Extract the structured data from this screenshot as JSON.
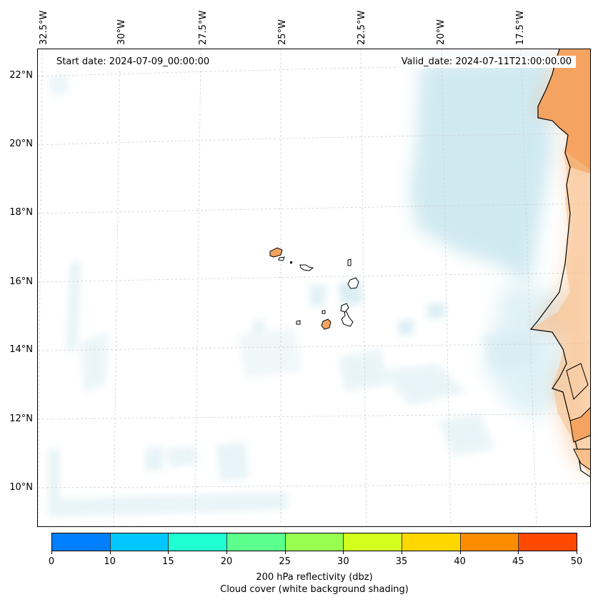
{
  "map": {
    "start_date": "Start date: 2024-07-09_00:00:00",
    "valid_date": "Valid_date: 2024-07-11T21:00:00.00",
    "longitude_labels": [
      "32.5°W",
      "30°W",
      "27.5°W",
      "25°W",
      "22.5°W",
      "20°W",
      "17.5°W"
    ],
    "latitude_labels": [
      "22°N",
      "20°N",
      "18°N",
      "16°N",
      "14°N",
      "12°N",
      "10°N"
    ],
    "colors": {
      "cloud_cover": "#a9d8e6",
      "land_reflectivity": "#f4a460",
      "coastline": "#000000",
      "gridline": "#cfcfcf"
    }
  },
  "colorbar": {
    "ticks": [
      "0",
      "10",
      "15",
      "20",
      "25",
      "30",
      "35",
      "40",
      "45",
      "50"
    ],
    "colors": [
      "#0080ff",
      "#00c8ff",
      "#1effd2",
      "#5aff8c",
      "#96ff50",
      "#d2ff1e",
      "#ffd700",
      "#ff8c00",
      "#ff4800"
    ],
    "label": "200 hPa reflectivity (dbz)",
    "sublabel": "Cloud cover (white background shading)"
  }
}
